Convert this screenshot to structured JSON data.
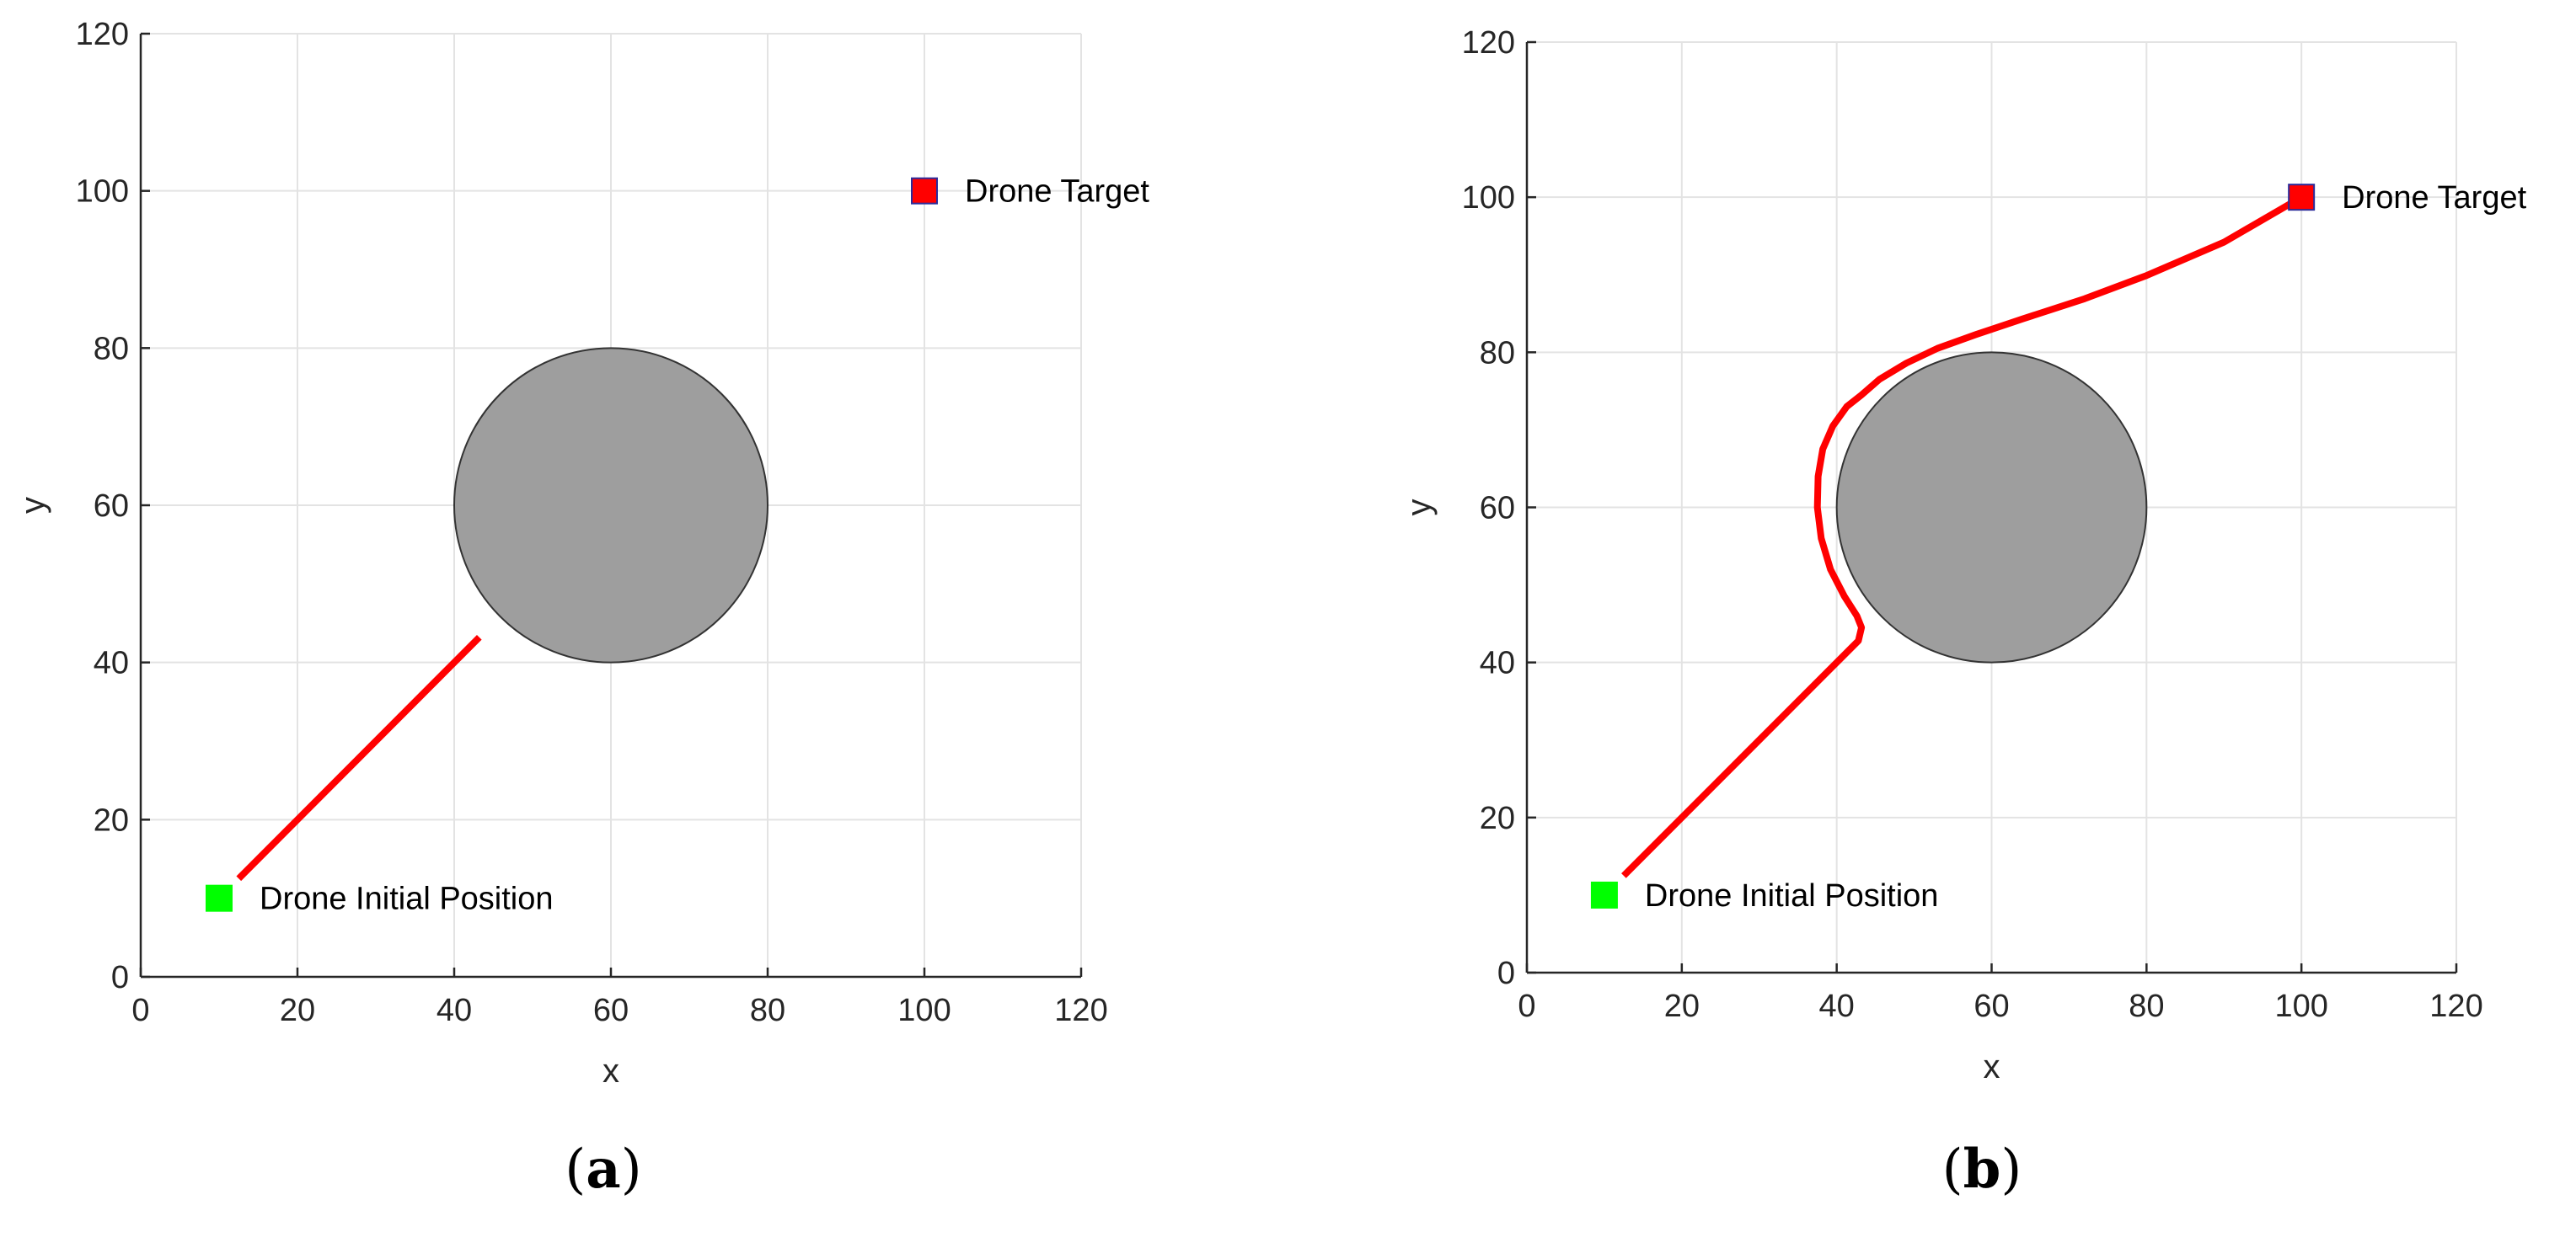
{
  "chart_data": [
    {
      "type": "line",
      "panel_label": "a",
      "xlabel": "x",
      "ylabel": "y",
      "xlim": [
        0,
        120
      ],
      "ylim": [
        0,
        120
      ],
      "xticks": [
        0,
        20,
        40,
        60,
        80,
        100,
        120
      ],
      "yticks": [
        0,
        20,
        40,
        60,
        80,
        100,
        120
      ],
      "grid": true,
      "obstacle": {
        "center": [
          60,
          60
        ],
        "radius": 20,
        "color": "#9e9e9e"
      },
      "markers": [
        {
          "label": "Drone Initial Position",
          "x": 10,
          "y": 10,
          "color": "#00ff00"
        },
        {
          "label": "Drone Target",
          "x": 100,
          "y": 100,
          "color": "#ff0000"
        }
      ],
      "series": [
        {
          "color": "#ff0000",
          "x": [
            12.5,
            43.2
          ],
          "y": [
            12.5,
            43.2
          ]
        }
      ]
    },
    {
      "type": "line",
      "panel_label": "b",
      "xlabel": "x",
      "ylabel": "y",
      "xlim": [
        0,
        120
      ],
      "ylim": [
        0,
        120
      ],
      "xticks": [
        0,
        20,
        40,
        60,
        80,
        100,
        120
      ],
      "yticks": [
        0,
        20,
        40,
        60,
        80,
        100,
        120
      ],
      "grid": true,
      "obstacle": {
        "center": [
          60,
          60
        ],
        "radius": 20,
        "color": "#9e9e9e"
      },
      "markers": [
        {
          "label": "Drone Initial Position",
          "x": 10,
          "y": 10,
          "color": "#00ff00"
        },
        {
          "label": "Drone Target",
          "x": 100,
          "y": 100,
          "color": "#ff0000"
        }
      ],
      "series": [
        {
          "color": "#ff0000",
          "x": [
            12.5,
            42.8,
            43.2,
            42.6,
            41.0,
            39.2,
            38.0,
            37.5,
            37.6,
            38.2,
            39.5,
            41.3,
            43.2,
            45.5,
            49.0,
            53.0,
            58.0,
            64.0,
            72.0,
            80.0,
            90.0,
            100.0
          ],
          "y": [
            12.5,
            42.8,
            44.5,
            46.0,
            48.5,
            52.0,
            56.0,
            60.0,
            64.0,
            67.5,
            70.5,
            73.0,
            74.5,
            76.5,
            78.6,
            80.5,
            82.3,
            84.3,
            86.9,
            89.9,
            94.2,
            100.0
          ]
        }
      ]
    }
  ]
}
